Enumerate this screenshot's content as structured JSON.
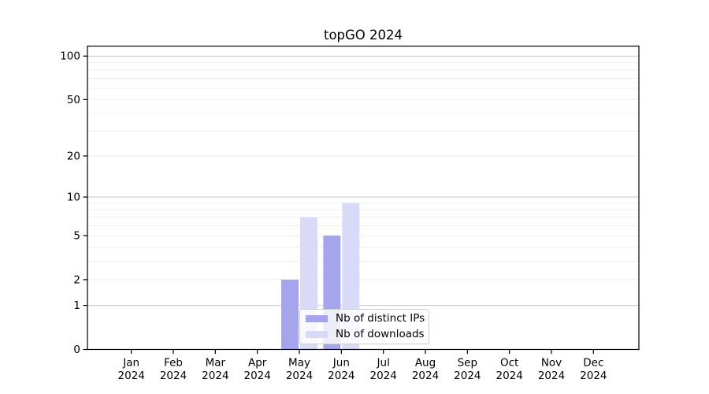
{
  "chart_data": {
    "type": "bar",
    "title": "topGO 2024",
    "months": [
      "Jan",
      "Feb",
      "Mar",
      "Apr",
      "May",
      "Jun",
      "Jul",
      "Aug",
      "Sep",
      "Oct",
      "Nov",
      "Dec"
    ],
    "year_label": "2024",
    "series": [
      {
        "name": "Nb of distinct IPs",
        "color": "#a5a5ee",
        "values": [
          0,
          0,
          0,
          0,
          2,
          5,
          0,
          0,
          0,
          0,
          0,
          0
        ]
      },
      {
        "name": "Nb of downloads",
        "color": "#d9d9f8",
        "values": [
          0,
          0,
          0,
          0,
          7,
          9,
          0,
          0,
          0,
          0,
          0,
          0
        ]
      }
    ],
    "y_axis": {
      "scale": "log1p",
      "tick_labels": [
        "0",
        "1",
        "2",
        "5",
        "10",
        "20",
        "50",
        "100"
      ],
      "tick_values": [
        0,
        1,
        2,
        5,
        10,
        20,
        50,
        100
      ],
      "major_gridlines": [
        1,
        10,
        100
      ],
      "minor_gridlines": [
        2,
        3,
        4,
        5,
        6,
        7,
        8,
        9,
        20,
        30,
        40,
        50,
        60,
        70,
        80,
        90
      ]
    },
    "ylim": [
      0,
      100
    ],
    "grid": "horizontal",
    "legend": {
      "position": "lower-center-overlay"
    }
  },
  "colors": {
    "bar_ips": "#a5a5ee",
    "bar_downloads": "#d9d9f8",
    "major_grid": "#c9c9c9",
    "minor_grid": "#ededed",
    "axis": "#000000",
    "legend_border": "#cccccc",
    "legend_background": "rgba(255,255,255,0.8)",
    "text": "#000000"
  }
}
